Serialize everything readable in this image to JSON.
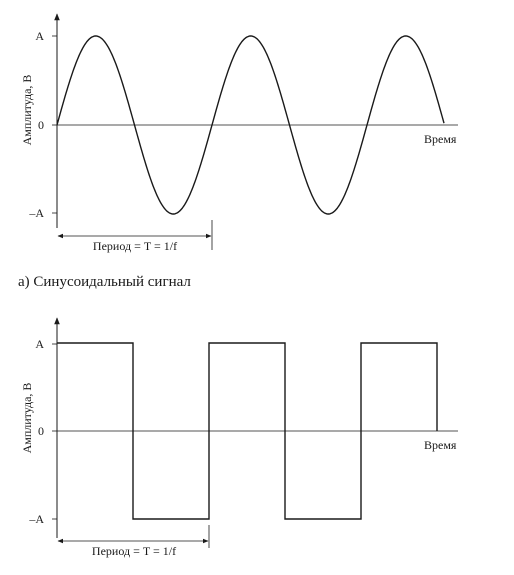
{
  "figure_a": {
    "y_axis_label": "Амплитуда, В",
    "x_axis_label": "Время",
    "ticks": {
      "top": "A",
      "zero": "0",
      "bottom": "–A"
    },
    "period_label": "Период = T = 1/f",
    "caption": "а) Синусоидальный сигнал"
  },
  "figure_b": {
    "y_axis_label": "Амплитуда, В",
    "x_axis_label": "Время",
    "ticks": {
      "top": "A",
      "zero": "0",
      "bottom": "–A"
    },
    "period_label": "Период = T = 1/f"
  },
  "chart_data": [
    {
      "type": "line",
      "signal": "sine",
      "amplitude": 1,
      "periods_shown": 2.5,
      "ylim": [
        -1,
        1
      ]
    },
    {
      "type": "line",
      "signal": "square",
      "amplitude": 1,
      "periods_shown": 2.5,
      "ylim": [
        -1,
        1
      ]
    }
  ]
}
